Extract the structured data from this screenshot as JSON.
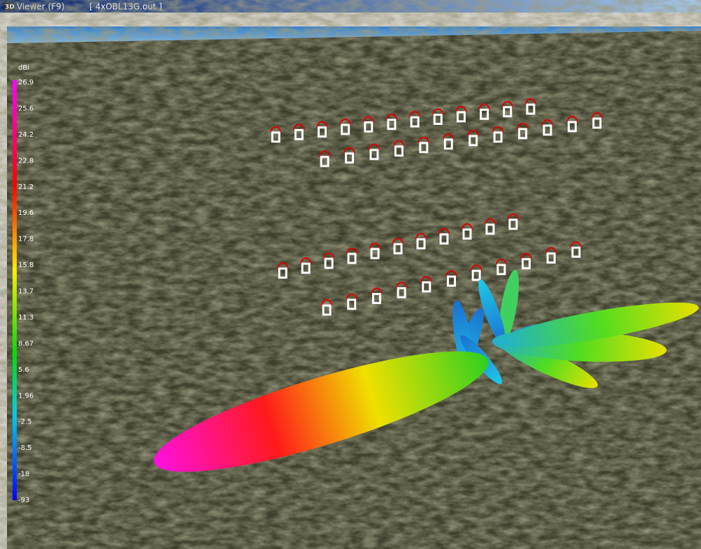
{
  "window": {
    "icon": "3D",
    "title": "Viewer (F9)",
    "file": "[ 4xOBL13G.out ]"
  },
  "legend": {
    "unit": "dBi",
    "labels": [
      "26.9",
      "25.6",
      "24.2",
      "22.8",
      "21.2",
      "19.6",
      "17.8",
      "15.8",
      "13.7",
      "11.3",
      "8.67",
      "5.6",
      "1.96",
      "-2.5",
      "-8.5",
      "-18",
      "-93"
    ]
  }
}
